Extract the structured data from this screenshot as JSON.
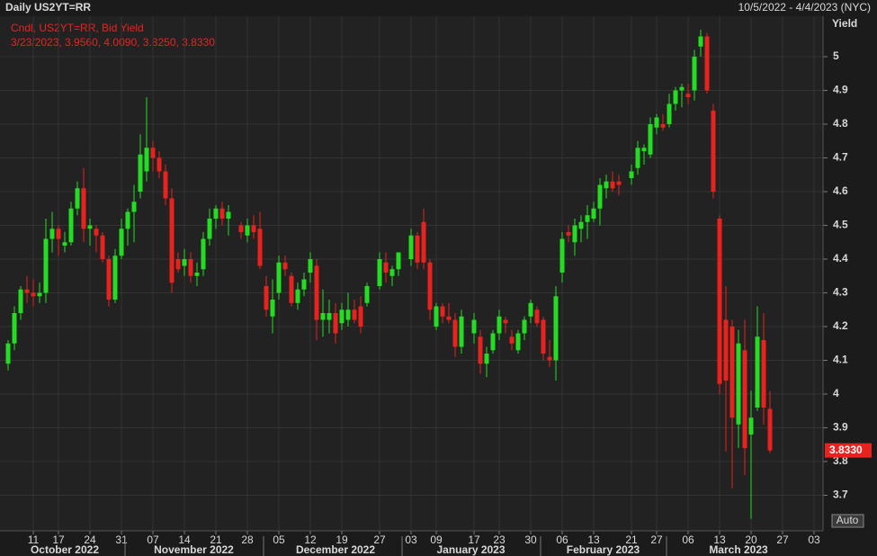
{
  "chart_data": {
    "type": "candlestick",
    "title": "Daily US2YT=RR",
    "date_range": "10/5/2022 - 4/4/2023 (NYC)",
    "legend_title": "Cndl, US2YT=RR, Bid Yield",
    "legend_values": "3/23/2023, 3.9560, 4.0090, 3.8250, 3.8330",
    "y_axis_label": "Yield",
    "last_value_label": "3.8330",
    "scale_button": "Auto",
    "up_color": "#22dd22",
    "down_color": "#e8231f",
    "grid": true,
    "ylim": [
      3.6,
      5.12
    ],
    "yticks": [
      3.7,
      3.8,
      3.9,
      4,
      4.1,
      4.2,
      4.3,
      4.4,
      4.5,
      4.6,
      4.7,
      4.8,
      4.9,
      5
    ],
    "xlim": [
      "2022-10-05",
      "2023-04-04"
    ],
    "xticks": [
      {
        "value": "2022-10-11",
        "label": "11"
      },
      {
        "value": "2022-10-17",
        "label": "17"
      },
      {
        "value": "2022-10-24",
        "label": "24"
      },
      {
        "value": "2022-10-31",
        "label": "31"
      },
      {
        "value": "2022-11-07",
        "label": "07"
      },
      {
        "value": "2022-11-14",
        "label": "14"
      },
      {
        "value": "2022-11-21",
        "label": "21"
      },
      {
        "value": "2022-11-28",
        "label": "28"
      },
      {
        "value": "2022-12-05",
        "label": "05"
      },
      {
        "value": "2022-12-12",
        "label": "12"
      },
      {
        "value": "2022-12-19",
        "label": "19"
      },
      {
        "value": "2022-12-27",
        "label": "27"
      },
      {
        "value": "2023-01-03",
        "label": "03"
      },
      {
        "value": "2023-01-09",
        "label": "09"
      },
      {
        "value": "2023-01-17",
        "label": "17"
      },
      {
        "value": "2023-01-23",
        "label": "23"
      },
      {
        "value": "2023-01-30",
        "label": "30"
      },
      {
        "value": "2023-02-06",
        "label": "06"
      },
      {
        "value": "2023-02-13",
        "label": "13"
      },
      {
        "value": "2023-02-21",
        "label": "21"
      },
      {
        "value": "2023-02-27",
        "label": "27"
      },
      {
        "value": "2023-03-06",
        "label": "06"
      },
      {
        "value": "2023-03-13",
        "label": "13"
      },
      {
        "value": "2023-03-20",
        "label": "20"
      },
      {
        "value": "2023-03-27",
        "label": "27"
      },
      {
        "value": "2023-04-03",
        "label": "03"
      }
    ],
    "xmonths": [
      {
        "value": "2022-10",
        "label": "October 2022"
      },
      {
        "value": "2022-11",
        "label": "November 2022"
      },
      {
        "value": "2022-12",
        "label": "December 2022"
      },
      {
        "value": "2023-01",
        "label": "January 2023"
      },
      {
        "value": "2023-02",
        "label": "February 2023"
      },
      {
        "value": "2023-03",
        "label": "March 2023"
      }
    ],
    "x": [
      "2022-10-05",
      "2022-10-06",
      "2022-10-07",
      "2022-10-10",
      "2022-10-11",
      "2022-10-12",
      "2022-10-13",
      "2022-10-14",
      "2022-10-17",
      "2022-10-18",
      "2022-10-19",
      "2022-10-20",
      "2022-10-21",
      "2022-10-24",
      "2022-10-25",
      "2022-10-26",
      "2022-10-27",
      "2022-10-28",
      "2022-10-31",
      "2022-11-01",
      "2022-11-02",
      "2022-11-03",
      "2022-11-04",
      "2022-11-07",
      "2022-11-08",
      "2022-11-09",
      "2022-11-10",
      "2022-11-11",
      "2022-11-14",
      "2022-11-15",
      "2022-11-16",
      "2022-11-17",
      "2022-11-18",
      "2022-11-21",
      "2022-11-22",
      "2022-11-23",
      "2022-11-25",
      "2022-11-28",
      "2022-11-29",
      "2022-11-30",
      "2022-12-01",
      "2022-12-02",
      "2022-12-05",
      "2022-12-06",
      "2022-12-07",
      "2022-12-08",
      "2022-12-09",
      "2022-12-12",
      "2022-12-13",
      "2022-12-14",
      "2022-12-15",
      "2022-12-16",
      "2022-12-19",
      "2022-12-20",
      "2022-12-21",
      "2022-12-22",
      "2022-12-23",
      "2022-12-27",
      "2022-12-28",
      "2022-12-29",
      "2022-12-30",
      "2023-01-03",
      "2023-01-04",
      "2023-01-05",
      "2023-01-06",
      "2023-01-09",
      "2023-01-10",
      "2023-01-11",
      "2023-01-12",
      "2023-01-13",
      "2023-01-17",
      "2023-01-18",
      "2023-01-19",
      "2023-01-20",
      "2023-01-23",
      "2023-01-24",
      "2023-01-25",
      "2023-01-26",
      "2023-01-27",
      "2023-01-30",
      "2023-01-31",
      "2023-02-01",
      "2023-02-02",
      "2023-02-03",
      "2023-02-06",
      "2023-02-07",
      "2023-02-08",
      "2023-02-09",
      "2023-02-10",
      "2023-02-13",
      "2023-02-14",
      "2023-02-15",
      "2023-02-16",
      "2023-02-17",
      "2023-02-21",
      "2023-02-22",
      "2023-02-23",
      "2023-02-24",
      "2023-02-27",
      "2023-02-28",
      "2023-03-01",
      "2023-03-02",
      "2023-03-03",
      "2023-03-06",
      "2023-03-07",
      "2023-03-08",
      "2023-03-09",
      "2023-03-10",
      "2023-03-13",
      "2023-03-14",
      "2023-03-15",
      "2023-03-16",
      "2023-03-17",
      "2023-03-20",
      "2023-03-21",
      "2023-03-22",
      "2023-03-23"
    ],
    "open": [
      4.09,
      4.15,
      4.24,
      4.31,
      4.3,
      4.29,
      4.3,
      4.46,
      4.49,
      4.44,
      4.45,
      4.55,
      4.61,
      4.49,
      4.49,
      4.47,
      4.4,
      4.28,
      4.41,
      4.49,
      4.54,
      4.6,
      4.66,
      4.73,
      4.7,
      4.66,
      4.58,
      4.4,
      4.38,
      4.4,
      4.35,
      4.37,
      4.46,
      4.52,
      4.55,
      4.52,
      4.5,
      4.47,
      4.5,
      4.49,
      4.32,
      4.23,
      4.3,
      4.39,
      4.35,
      4.27,
      4.31,
      4.36,
      4.38,
      4.22,
      4.22,
      4.24,
      4.21,
      4.22,
      4.25,
      4.26,
      4.27,
      4.32,
      4.39,
      4.35,
      4.37,
      4.4,
      4.47,
      4.51,
      4.39,
      4.2,
      4.26,
      4.23,
      4.22,
      4.14,
      4.18,
      4.17,
      4.09,
      4.13,
      4.18,
      4.22,
      4.17,
      4.13,
      4.18,
      4.23,
      4.25,
      4.22,
      4.11,
      4.1,
      4.36,
      4.48,
      4.45,
      4.49,
      4.51,
      4.52,
      4.55,
      4.61,
      4.63,
      4.63,
      4.64,
      4.67,
      4.72,
      4.71,
      4.79,
      4.8,
      4.8,
      4.86,
      4.9,
      4.89,
      4.9,
      5.03,
      5.06,
      4.84,
      4.52,
      4.22,
      4.2,
      3.91,
      4.13,
      3.88,
      3.96,
      4.16,
      3.956
    ],
    "high": [
      4.16,
      4.26,
      4.32,
      4.35,
      4.34,
      4.33,
      4.52,
      4.54,
      4.5,
      4.48,
      4.57,
      4.63,
      4.67,
      4.52,
      4.5,
      4.48,
      4.41,
      4.43,
      4.52,
      4.55,
      4.62,
      4.77,
      4.88,
      4.75,
      4.72,
      4.68,
      4.61,
      4.42,
      4.43,
      4.42,
      4.39,
      4.48,
      4.55,
      4.56,
      4.57,
      4.56,
      4.51,
      4.52,
      4.53,
      4.54,
      4.35,
      4.34,
      4.41,
      4.41,
      4.36,
      4.33,
      4.36,
      4.42,
      4.4,
      4.31,
      4.28,
      4.27,
      4.27,
      4.3,
      4.28,
      4.29,
      4.33,
      4.42,
      4.42,
      4.38,
      4.42,
      4.49,
      4.48,
      4.55,
      4.4,
      4.27,
      4.27,
      4.27,
      4.24,
      4.25,
      4.24,
      4.19,
      4.14,
      4.19,
      4.25,
      4.23,
      4.19,
      4.19,
      4.23,
      4.28,
      4.26,
      4.23,
      4.16,
      4.32,
      4.48,
      4.5,
      4.52,
      4.53,
      4.56,
      4.57,
      4.64,
      4.65,
      4.66,
      4.65,
      4.68,
      4.75,
      4.74,
      4.82,
      4.83,
      4.83,
      4.89,
      4.91,
      4.92,
      4.92,
      5.02,
      5.08,
      5.07,
      4.86,
      4.53,
      4.32,
      4.22,
      4.19,
      4.22,
      4.01,
      4.26,
      4.24,
      4.009
    ],
    "low": [
      4.07,
      4.13,
      4.22,
      4.27,
      4.26,
      4.27,
      4.27,
      4.42,
      4.41,
      4.42,
      4.44,
      4.53,
      4.45,
      4.44,
      4.42,
      4.39,
      4.26,
      4.27,
      4.4,
      4.44,
      4.45,
      4.58,
      4.63,
      4.66,
      4.64,
      4.56,
      4.3,
      4.36,
      4.35,
      4.33,
      4.32,
      4.35,
      4.44,
      4.49,
      4.5,
      4.47,
      4.46,
      4.45,
      4.46,
      4.37,
      4.23,
      4.18,
      4.28,
      4.35,
      4.26,
      4.25,
      4.29,
      4.33,
      4.16,
      4.17,
      4.18,
      4.15,
      4.19,
      4.2,
      4.21,
      4.18,
      4.26,
      4.31,
      4.33,
      4.32,
      4.35,
      4.38,
      4.37,
      4.37,
      4.22,
      4.19,
      4.21,
      4.21,
      4.11,
      4.12,
      4.15,
      4.06,
      4.05,
      4.12,
      4.16,
      4.18,
      4.13,
      4.12,
      4.16,
      4.21,
      4.2,
      4.1,
      4.08,
      4.04,
      4.33,
      4.45,
      4.41,
      4.45,
      4.46,
      4.51,
      4.5,
      4.58,
      4.6,
      4.59,
      4.62,
      4.65,
      4.68,
      4.7,
      4.77,
      4.78,
      4.79,
      4.84,
      4.85,
      4.86,
      4.87,
      5.0,
      4.89,
      4.58,
      4.0,
      3.83,
      3.72,
      3.84,
      3.76,
      3.63,
      3.95,
      3.91,
      3.825
    ],
    "close": [
      4.15,
      4.24,
      4.31,
      4.3,
      4.29,
      4.3,
      4.46,
      4.49,
      4.46,
      4.45,
      4.55,
      4.61,
      4.49,
      4.5,
      4.47,
      4.4,
      4.28,
      4.41,
      4.49,
      4.54,
      4.57,
      4.71,
      4.73,
      4.7,
      4.66,
      4.58,
      4.33,
      4.37,
      4.4,
      4.35,
      4.36,
      4.46,
      4.52,
      4.55,
      4.52,
      4.54,
      4.48,
      4.5,
      4.48,
      4.38,
      4.25,
      4.28,
      4.39,
      4.37,
      4.27,
      4.31,
      4.34,
      4.4,
      4.22,
      4.24,
      4.24,
      4.18,
      4.25,
      4.25,
      4.22,
      4.2,
      4.32,
      4.4,
      4.36,
      4.37,
      4.42,
      4.47,
      4.39,
      4.39,
      4.25,
      4.26,
      4.23,
      4.22,
      4.14,
      4.23,
      4.22,
      4.09,
      4.12,
      4.18,
      4.23,
      4.21,
      4.15,
      4.18,
      4.22,
      4.27,
      4.21,
      4.12,
      4.1,
      4.29,
      4.46,
      4.47,
      4.5,
      4.51,
      4.53,
      4.55,
      4.62,
      4.63,
      4.61,
      4.62,
      4.66,
      4.73,
      4.73,
      4.8,
      4.82,
      4.79,
      4.86,
      4.9,
      4.91,
      4.88,
      5.0,
      5.06,
      4.9,
      4.6,
      4.03,
      4.04,
      3.93,
      4.15,
      3.84,
      3.93,
      4.17,
      3.96,
      3.833
    ]
  }
}
